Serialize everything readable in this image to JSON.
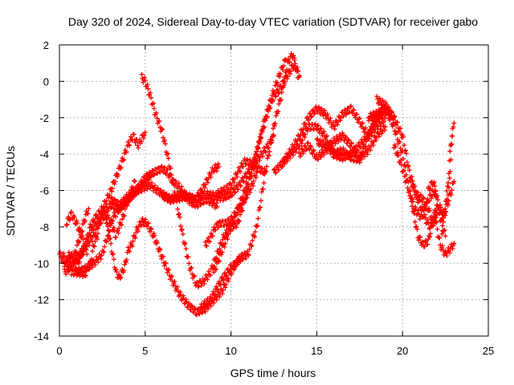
{
  "chart_data": {
    "type": "scatter",
    "title": "Day 320 of 2024, Sidereal Day-to-day VTEC variation (SDTVAR) for receiver gabo",
    "xlabel": "GPS time / hours",
    "ylabel": "SDTVAR / TECUs",
    "xlim": [
      0,
      25
    ],
    "ylim": [
      -14,
      2
    ],
    "xticks": [
      "0",
      "5",
      "10",
      "15",
      "20",
      "25"
    ],
    "yticks": [
      "2",
      "0",
      "-2",
      "-4",
      "-6",
      "-8",
      "-10",
      "-12",
      "-14"
    ],
    "grid": true,
    "marker": "+",
    "color": "#ff0000",
    "series": [
      {
        "x": [
          0.0,
          0.3,
          0.6,
          1.0,
          1.5,
          2.0,
          2.5,
          3.0,
          3.5,
          4.0,
          4.5,
          5.0,
          5.3
        ],
        "y": [
          -9.5,
          -10.0,
          -9.5,
          -10.2,
          -9.0,
          -8.0,
          -7.3,
          -6.8,
          -7.0,
          -6.5,
          -6.0,
          -5.4,
          -5.2
        ]
      },
      {
        "x": [
          0.2,
          0.5,
          1.0,
          1.5,
          1.8,
          2.1,
          2.5,
          3.0,
          3.5,
          4.0,
          4.3,
          4.6,
          5.0
        ],
        "y": [
          -9.5,
          -10.3,
          -9.8,
          -9.0,
          -8.0,
          -7.5,
          -7.0,
          -6.0,
          -4.8,
          -3.5,
          -3.0,
          -3.5,
          -2.8
        ]
      },
      {
        "x": [
          0.3,
          0.6,
          0.9,
          1.3,
          1.6,
          2.0,
          2.3,
          2.7,
          3.0,
          3.3,
          3.7,
          4.0,
          4.4
        ],
        "y": [
          -10.5,
          -10.2,
          -9.8,
          -9.5,
          -9.0,
          -8.5,
          -7.8,
          -7.3,
          -7.8,
          -8.5,
          -7.5,
          -6.5,
          -5.5
        ]
      },
      {
        "x": [
          0.4,
          0.7,
          1.0,
          1.3,
          1.6
        ],
        "y": [
          -7.8,
          -7.3,
          -7.8,
          -8.5,
          -9.5
        ]
      },
      {
        "x": [
          0.5,
          0.9,
          1.2,
          1.5,
          1.7
        ],
        "y": [
          -9.8,
          -9.5,
          -8.5,
          -7.5,
          -7.0
        ]
      },
      {
        "x": [
          0.7,
          1.1,
          1.5,
          1.8,
          2.0,
          2.2,
          2.4,
          2.6,
          3.0,
          3.3,
          3.5,
          3.8,
          4.0,
          4.2,
          4.5,
          4.8,
          5.1,
          5.5,
          6.0,
          6.5,
          7.0,
          7.5,
          8.0,
          8.5,
          9.0,
          9.5,
          10.0,
          10.5,
          11.0,
          11.5,
          12.0,
          12.5,
          13.0,
          13.3,
          13.6,
          13.9
        ],
        "y": [
          -10.5,
          -10.5,
          -10.6,
          -10.0,
          -9.0,
          -8.5,
          -7.5,
          -7.0,
          -9.0,
          -10.5,
          -10.8,
          -10.2,
          -9.3,
          -9.0,
          -8.2,
          -7.7,
          -7.8,
          -8.5,
          -9.7,
          -10.8,
          -11.7,
          -12.3,
          -12.7,
          -12.5,
          -12.0,
          -11.5,
          -10.5,
          -9.7,
          -9.5,
          -8.0,
          -5.0,
          -2.5,
          -0.5,
          1.0,
          1.5,
          0.2
        ]
      },
      {
        "x": [
          1.0,
          1.5,
          2.0,
          2.5,
          2.8,
          3.1,
          3.5,
          4.0,
          4.5,
          5.0,
          5.3,
          5.7,
          6.0,
          6.5,
          7.0,
          7.5,
          8.0,
          8.5,
          9.0,
          9.5,
          10.0,
          10.5,
          11.0,
          11.3,
          11.6,
          11.9,
          12.2,
          12.5,
          12.8,
          13.1,
          13.4,
          13.7,
          14.0
        ],
        "y": [
          -10.5,
          -10.3,
          -10.0,
          -9.5,
          -8.5,
          -7.5,
          -7.0,
          -6.5,
          -6.0,
          -5.8,
          -5.7,
          -6.0,
          -6.2,
          -6.5,
          -6.4,
          -6.3,
          -6.5,
          -6.2,
          -6.3,
          -6.4,
          -6.2,
          -5.7,
          -5.0,
          -4.5,
          -3.5,
          -2.5,
          -1.5,
          -0.8,
          -0.5,
          0.0,
          0.5,
          1.0,
          0.3
        ]
      },
      {
        "x": [
          3.0,
          3.5,
          4.0,
          4.5,
          5.0,
          5.5,
          6.0,
          6.3,
          6.6,
          7.0,
          7.3,
          7.6,
          8.0,
          8.3,
          8.6,
          9.0,
          9.2
        ],
        "y": [
          -6.5,
          -6.8,
          -6.3,
          -6.0,
          -5.3,
          -5.0,
          -4.8,
          -5.0,
          -5.5,
          -5.8,
          -6.2,
          -6.6,
          -6.8,
          -6.6,
          -6.5,
          -6.7,
          -6.9
        ]
      },
      {
        "x": [
          4.8,
          5.0,
          5.3,
          5.6,
          6.0,
          6.4,
          6.8,
          7.2,
          7.6,
          8.0,
          8.4,
          8.8,
          9.2,
          9.6,
          10.0,
          10.4,
          10.8,
          11.2,
          11.6,
          12.0,
          12.4,
          12.8,
          13.2
        ],
        "y": [
          0.2,
          0.0,
          -0.8,
          -1.8,
          -2.8,
          -4.5,
          -6.5,
          -8.5,
          -10.2,
          -11.2,
          -11.0,
          -10.5,
          -9.5,
          -8.5,
          -8.0,
          -7.8,
          -6.5,
          -5.0,
          -3.5,
          -2.0,
          -0.8,
          0.3,
          1.2
        ]
      },
      {
        "x": [
          6.0,
          6.5,
          7.0,
          7.5,
          7.9,
          8.3,
          8.7,
          9.0,
          9.3
        ],
        "y": [
          -6.3,
          -6.5,
          -6.2,
          -6.4,
          -6.5,
          -6.0,
          -5.3,
          -4.8,
          -4.7
        ]
      },
      {
        "x": [
          8.2,
          8.5,
          8.8,
          9.1,
          9.4,
          9.7,
          10.0,
          10.3,
          10.6
        ],
        "y": [
          -12.5,
          -12.2,
          -12.0,
          -11.5,
          -11.0,
          -10.6,
          -10.2,
          -10.0,
          -9.7
        ]
      },
      {
        "x": [
          8.5,
          8.8,
          9.1,
          9.4,
          9.7,
          10.0,
          10.3,
          10.6,
          10.9,
          11.2,
          11.5
        ],
        "y": [
          -9.0,
          -8.6,
          -8.0,
          -7.8,
          -7.8,
          -7.6,
          -7.2,
          -6.8,
          -6.3,
          -5.8,
          -5.0
        ]
      },
      {
        "x": [
          9.0,
          9.4,
          9.8,
          10.2,
          10.6,
          11.0,
          11.4,
          11.8,
          12.2,
          12.5
        ],
        "y": [
          -10.5,
          -9.5,
          -8.5,
          -7.5,
          -6.5,
          -5.5,
          -4.5,
          -4.0,
          -3.5,
          -3.0
        ]
      },
      {
        "x": [
          9.2,
          9.6,
          10.0,
          10.4,
          10.8,
          11.2,
          11.6,
          12.0
        ],
        "y": [
          -6.2,
          -6.0,
          -5.7,
          -5.0,
          -4.4,
          -4.5,
          -4.8,
          -5.0
        ]
      },
      {
        "x": [
          12.5,
          13.0,
          13.5,
          14.0,
          14.5,
          15.0,
          15.5,
          16.0,
          16.5,
          17.0,
          17.5,
          18.0,
          18.5,
          19.0
        ],
        "y": [
          -5.0,
          -4.5,
          -4.0,
          -3.5,
          -2.5,
          -2.5,
          -3.0,
          -4.0,
          -4.2,
          -4.0,
          -3.5,
          -3.0,
          -2.5,
          -2.0
        ]
      },
      {
        "x": [
          13.0,
          13.5,
          14.0,
          14.5,
          15.0,
          15.5,
          16.0,
          16.5,
          17.0,
          17.5,
          18.0,
          18.5,
          19.0,
          19.5
        ],
        "y": [
          -4.5,
          -3.8,
          -3.0,
          -2.0,
          -1.5,
          -1.8,
          -2.5,
          -1.8,
          -1.5,
          -2.2,
          -3.0,
          -2.0,
          -1.5,
          -2.0
        ]
      },
      {
        "x": [
          14.0,
          14.5,
          15.0,
          15.5,
          16.0,
          16.5,
          17.0,
          17.5,
          18.0,
          18.5,
          19.0
        ],
        "y": [
          -4.0,
          -3.5,
          -4.2,
          -3.8,
          -3.3,
          -3.0,
          -3.5,
          -4.2,
          -3.8,
          -3.0,
          -2.5
        ]
      },
      {
        "x": [
          15.0,
          15.5,
          16.0,
          16.5,
          17.0,
          17.5,
          18.0,
          18.5,
          19.0
        ],
        "y": [
          -3.3,
          -3.5,
          -4.0,
          -3.8,
          -4.2,
          -4.3,
          -3.0,
          -2.0,
          -1.6
        ]
      },
      {
        "x": [
          18.0,
          18.5,
          19.0,
          19.5,
          20.0,
          20.3,
          20.6,
          20.9,
          21.2,
          21.5,
          21.8,
          22.0
        ],
        "y": [
          -2.0,
          -1.8,
          -1.5,
          -2.5,
          -4.0,
          -5.5,
          -7.0,
          -8.5,
          -9.0,
          -8.8,
          -7.5,
          -6.8
        ]
      },
      {
        "x": [
          18.5,
          19.0,
          19.5,
          20.0,
          20.4,
          20.8,
          21.2,
          21.5,
          21.8,
          22.1,
          22.4,
          22.7,
          23.0
        ],
        "y": [
          -1.0,
          -1.3,
          -2.0,
          -3.0,
          -5.0,
          -6.2,
          -6.5,
          -7.0,
          -7.8,
          -7.0,
          -7.5,
          -6.5,
          -5.5
        ]
      },
      {
        "x": [
          19.5,
          19.9,
          20.3,
          20.7,
          21.1,
          21.5,
          21.9,
          22.2,
          22.5
        ],
        "y": [
          -3.5,
          -4.5,
          -5.8,
          -7.0,
          -7.5,
          -6.5,
          -6.0,
          -7.5,
          -8.5
        ]
      },
      {
        "x": [
          20.5,
          20.9,
          21.3,
          21.6,
          21.9,
          22.2,
          22.5,
          22.8,
          23.0
        ],
        "y": [
          -5.5,
          -6.5,
          -7.5,
          -8.0,
          -7.5,
          -9.0,
          -9.5,
          -9.2,
          -8.9
        ]
      },
      {
        "x": [
          21.5,
          21.8,
          22.1,
          22.4,
          22.7,
          22.9
        ],
        "y": [
          -6.0,
          -5.5,
          -6.8,
          -7.3,
          -6.0,
          -3.0
        ]
      },
      {
        "x": [
          22.3,
          22.5,
          22.7,
          22.8,
          23.0
        ],
        "y": [
          -8.3,
          -7.0,
          -5.0,
          -3.5,
          -2.3
        ]
      }
    ]
  }
}
